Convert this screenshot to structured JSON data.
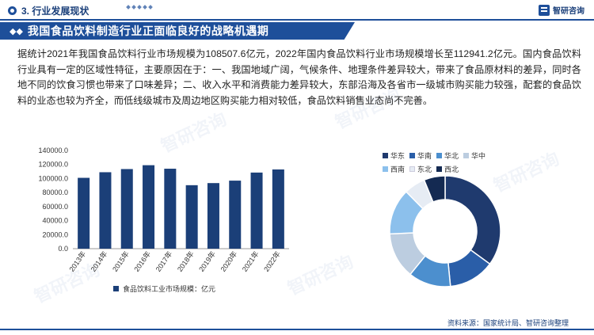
{
  "header": {
    "section_title": "3. 行业发展现状",
    "logo_text": "智研咨询",
    "banner_title": "我国食品饮料制造行业正面临良好的战略机遇期",
    "banner_icon": "double-diamond-icon"
  },
  "body": {
    "paragraph": "据统计2021年我国食品饮料行业市场规模为108507.6亿元，2022年国内食品饮料行业市场规模增长至112941.2亿元。国内食品饮料行业具有一定的区域性特征，主要原因在于：一、我国地域广阔，气候条件、地理条件差异较大，带来了食品原材料的差异，同时各地不同的饮食习惯也带来了口味差异；二、收入水平和消费能力差异较大，东部沿海及各省市一级城市购买能力较强，配套的食品饮料的业态也较为齐全，而低线级城市及周边地区购买能力相对较低，食品饮料销售业态尚不完善。"
  },
  "footer": {
    "source": "资料来源：国家统计局、智研咨询整理"
  },
  "watermark_text": "智研咨询",
  "colors": {
    "primary": "#1e4f9a",
    "bar": "#1b3f78"
  },
  "chart_data": [
    {
      "type": "bar",
      "categories": [
        "2013年",
        "2014年",
        "2015年",
        "2016年",
        "2017年",
        "2018年",
        "2019年",
        "2020年",
        "2021年",
        "2022年"
      ],
      "series": [
        {
          "name": "食品饮料工业市场规模：亿元",
          "values": [
            101000,
            109000,
            113500,
            119000,
            114000,
            90500,
            93500,
            97000,
            108507.6,
            112941.2
          ]
        }
      ],
      "yticks": [
        "0.0",
        "20000.0",
        "40000.0",
        "60000.0",
        "80000.0",
        "100000.0",
        "120000.0",
        "140000.0"
      ],
      "ylim": [
        0,
        140000
      ],
      "grid": false,
      "legend_position": "bottom"
    },
    {
      "type": "pie",
      "donut": true,
      "categories": [
        "华东",
        "华南",
        "华北",
        "华中",
        "西南",
        "东北",
        "西北"
      ],
      "values": [
        34,
        13,
        12,
        13,
        13,
        6,
        6
      ],
      "colors": [
        "#1f3a6e",
        "#2a5ea8",
        "#4c8fce",
        "#bccde0",
        "#8cc0ec",
        "#e6ecf4",
        "#142a52"
      ],
      "legend_position": "top"
    }
  ]
}
